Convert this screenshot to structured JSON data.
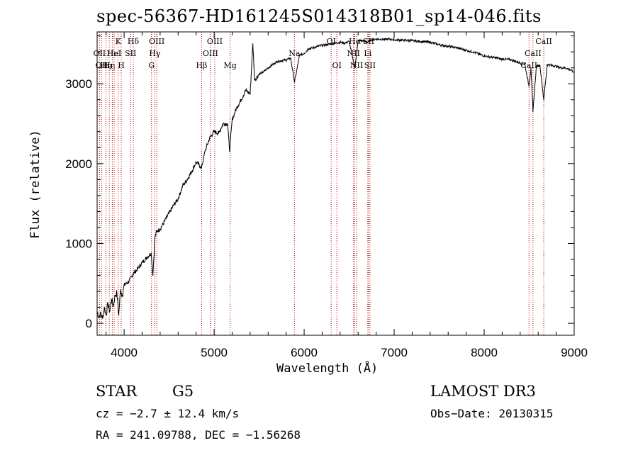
{
  "chart_data": {
    "type": "line",
    "title": "spec-56367-HD161245S014318B01_sp14-046.fits",
    "xlabel": "Wavelength (Å)",
    "ylabel": "Flux (relative)",
    "xlim": [
      3700,
      9000
    ],
    "ylim": [
      -150,
      3650
    ],
    "xticks": [
      4000,
      5000,
      6000,
      7000,
      8000,
      9000
    ],
    "yticks": [
      0,
      1000,
      2000,
      3000
    ],
    "series": [
      {
        "name": "spectrum",
        "x": [
          3700,
          3720,
          3740,
          3760,
          3780,
          3800,
          3820,
          3840,
          3860,
          3880,
          3900,
          3920,
          3940,
          3960,
          3980,
          4000,
          4050,
          4100,
          4150,
          4200,
          4250,
          4300,
          4320,
          4340,
          4360,
          4400,
          4450,
          4500,
          4550,
          4600,
          4650,
          4700,
          4750,
          4800,
          4860,
          4900,
          4950,
          5000,
          5050,
          5100,
          5150,
          5172,
          5200,
          5250,
          5300,
          5350,
          5400,
          5430,
          5450,
          5500,
          5550,
          5600,
          5650,
          5700,
          5750,
          5800,
          5850,
          5893,
          5950,
          6000,
          6050,
          6100,
          6150,
          6200,
          6250,
          6300,
          6350,
          6400,
          6450,
          6500,
          6563,
          6600,
          6650,
          6700,
          6750,
          6800,
          6850,
          6900,
          6950,
          7000,
          7100,
          7200,
          7300,
          7400,
          7500,
          7600,
          7700,
          7800,
          7900,
          8000,
          8100,
          8200,
          8300,
          8400,
          8450,
          8498,
          8520,
          8542,
          8580,
          8620,
          8662,
          8700,
          8750,
          8800,
          8850,
          8900,
          8950,
          8990
        ],
        "values": [
          150,
          80,
          120,
          60,
          200,
          100,
          250,
          150,
          300,
          220,
          350,
          380,
          100,
          420,
          350,
          480,
          520,
          620,
          680,
          760,
          820,
          880,
          600,
          1060,
          1150,
          1180,
          1280,
          1380,
          1480,
          1560,
          1720,
          1800,
          1900,
          2020,
          1950,
          2160,
          2320,
          2400,
          2380,
          2500,
          2500,
          2150,
          2550,
          2700,
          2800,
          2920,
          2870,
          3500,
          3050,
          3120,
          3150,
          3200,
          3240,
          3280,
          3290,
          3300,
          3320,
          3020,
          3360,
          3380,
          3440,
          3450,
          3470,
          3480,
          3490,
          3500,
          3510,
          3520,
          3510,
          3530,
          3200,
          3540,
          3540,
          3520,
          3550,
          3560,
          3560,
          3555,
          3560,
          3550,
          3545,
          3540,
          3530,
          3520,
          3490,
          3470,
          3450,
          3420,
          3390,
          3350,
          3330,
          3310,
          3300,
          3260,
          3250,
          2970,
          3200,
          2650,
          3220,
          3230,
          2800,
          3240,
          3230,
          3220,
          3200,
          3200,
          3180,
          3150
        ]
      }
    ],
    "lines": [
      {
        "x": 3726,
        "label": "OII",
        "row": 1
      },
      {
        "x": 3750,
        "label": "OII",
        "row": 2
      },
      {
        "x": 3798,
        "label": "Hη",
        "row": 2
      },
      {
        "x": 3835,
        "label": "Hη",
        "row": 2
      },
      {
        "x": 3869,
        "label": "Hε",
        "row": 1
      },
      {
        "x": 3889,
        "label": "HeI",
        "row": 1
      },
      {
        "x": 3934,
        "label": "K",
        "row": 0
      },
      {
        "x": 3968,
        "label": "H",
        "row": 2
      },
      {
        "x": 4072,
        "label": "SII",
        "row": 1
      },
      {
        "x": 4102,
        "label": "Hδ",
        "row": 0
      },
      {
        "x": 4304,
        "label": "G",
        "row": 2
      },
      {
        "x": 4341,
        "label": "Hγ",
        "row": 1
      },
      {
        "x": 4363,
        "label": "OIII",
        "row": 0
      },
      {
        "x": 4861,
        "label": "Hβ",
        "row": 2
      },
      {
        "x": 4959,
        "label": "OIII",
        "row": 1
      },
      {
        "x": 5007,
        "label": "OIII",
        "row": 0
      },
      {
        "x": 5177,
        "label": "Mg",
        "row": 2
      },
      {
        "x": 5892,
        "label": "Na",
        "row": 1
      },
      {
        "x": 6300,
        "label": "OI",
        "row": 0
      },
      {
        "x": 6363,
        "label": "OI",
        "row": 2
      },
      {
        "x": 6548,
        "label": "NII",
        "row": 1
      },
      {
        "x": 6563,
        "label": "Hα",
        "row": 0
      },
      {
        "x": 6583,
        "label": "NII",
        "row": 2
      },
      {
        "x": 6707,
        "label": "Li",
        "row": 1
      },
      {
        "x": 6716,
        "label": "SII",
        "row": 0
      },
      {
        "x": 6731,
        "label": "SII",
        "row": 2
      },
      {
        "x": 8498,
        "label": "CaII",
        "row": 2
      },
      {
        "x": 8542,
        "label": "CaII",
        "row": 1
      },
      {
        "x": 8662,
        "label": "CaII",
        "row": 0
      }
    ]
  },
  "info": {
    "class": "STAR",
    "subclass": "G5",
    "cz": "cz = −2.7 ± 12.4 km/s",
    "radec": "RA = 241.09788, DEC =  −1.56268",
    "survey": "LAMOST DR3",
    "obsdate": "Obs−Date: 20130315"
  }
}
